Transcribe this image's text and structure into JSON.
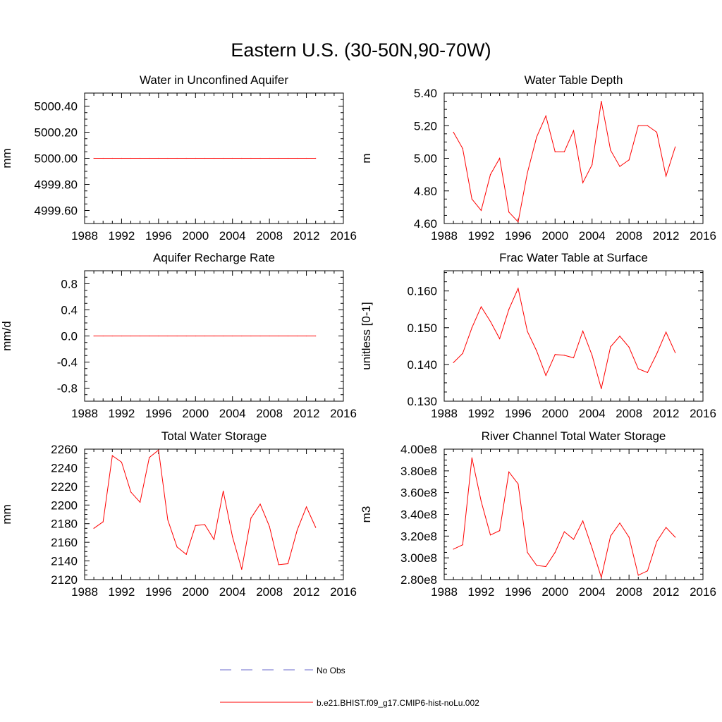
{
  "title": "Eastern U.S. (30-50N,90-70W)",
  "colors": {
    "model": "#ff0000",
    "obs": "#6a6acd",
    "axis": "#000000"
  },
  "legend": {
    "placement": "bottom-center",
    "entries": [
      {
        "label": "No Obs",
        "style": "dashed",
        "color": "#6a6acd"
      },
      {
        "label": "b.e21.BHIST.f09_g17.CMIP6-hist-noLu.002",
        "style": "solid",
        "color": "#ff0000"
      }
    ]
  },
  "chart_data": [
    {
      "type": "line",
      "title": "Water in Unconfined Aquifer",
      "ylabel": "mm",
      "xlim": [
        1988,
        2016
      ],
      "ylim": [
        4999.5,
        5000.5
      ],
      "xticks": [
        1988,
        1992,
        1996,
        2000,
        2004,
        2008,
        2012,
        2016
      ],
      "yticks": [
        4999.6,
        4999.8,
        5000.0,
        5000.2,
        5000.4
      ],
      "yticklabels": [
        "4999.60",
        "4999.80",
        "5000.00",
        "5000.20",
        "5000.40"
      ],
      "x": [
        1989,
        1990,
        1991,
        1992,
        1993,
        1994,
        1995,
        1996,
        1997,
        1998,
        1999,
        2000,
        2001,
        2002,
        2003,
        2004,
        2005,
        2006,
        2007,
        2008,
        2009,
        2010,
        2011,
        2012,
        2013
      ],
      "series": [
        {
          "values": [
            5000.0,
            5000.0,
            5000.0,
            5000.0,
            5000.0,
            5000.0,
            5000.0,
            5000.0,
            5000.0,
            5000.0,
            5000.0,
            5000.0,
            5000.0,
            5000.0,
            5000.0,
            5000.0,
            5000.0,
            5000.0,
            5000.0,
            5000.0,
            5000.0,
            5000.0,
            5000.0,
            5000.0,
            5000.0
          ]
        }
      ]
    },
    {
      "type": "line",
      "title": "Water Table Depth",
      "ylabel": "m",
      "xlim": [
        1988,
        2016
      ],
      "ylim": [
        4.6,
        5.4
      ],
      "xticks": [
        1988,
        1992,
        1996,
        2000,
        2004,
        2008,
        2012,
        2016
      ],
      "yticks": [
        4.6,
        4.8,
        5.0,
        5.2,
        5.4
      ],
      "yticklabels": [
        "4.60",
        "4.80",
        "5.00",
        "5.20",
        "5.40"
      ],
      "x": [
        1989,
        1990,
        1991,
        1992,
        1993,
        1994,
        1995,
        1996,
        1997,
        1998,
        1999,
        2000,
        2001,
        2002,
        2003,
        2004,
        2005,
        2006,
        2007,
        2008,
        2009,
        2010,
        2011,
        2012,
        2013
      ],
      "series": [
        {
          "values": [
            5.16,
            5.06,
            4.75,
            4.68,
            4.9,
            5.0,
            4.67,
            4.61,
            4.91,
            5.13,
            5.26,
            5.04,
            5.04,
            5.17,
            4.85,
            4.96,
            5.35,
            5.05,
            4.95,
            4.99,
            5.2,
            5.2,
            5.16,
            4.89,
            5.07
          ]
        }
      ]
    },
    {
      "type": "line",
      "title": "Aquifer Recharge Rate",
      "ylabel": "mm/d",
      "xlim": [
        1988,
        2016
      ],
      "ylim": [
        -1.0,
        1.0
      ],
      "xticks": [
        1988,
        1992,
        1996,
        2000,
        2004,
        2008,
        2012,
        2016
      ],
      "yticks": [
        -0.8,
        -0.4,
        0.0,
        0.4,
        0.8
      ],
      "yticklabels": [
        "-0.8",
        "-0.4",
        "0.0",
        "0.4",
        "0.8"
      ],
      "x": [
        1989,
        1990,
        1991,
        1992,
        1993,
        1994,
        1995,
        1996,
        1997,
        1998,
        1999,
        2000,
        2001,
        2002,
        2003,
        2004,
        2005,
        2006,
        2007,
        2008,
        2009,
        2010,
        2011,
        2012,
        2013
      ],
      "series": [
        {
          "values": [
            0.0,
            0.0,
            0.0,
            0.0,
            0.0,
            0.0,
            0.0,
            0.0,
            0.0,
            0.0,
            0.0,
            0.0,
            0.0,
            0.0,
            0.0,
            0.0,
            0.0,
            0.0,
            0.0,
            0.0,
            0.0,
            0.0,
            0.0,
            0.0,
            0.0
          ]
        }
      ]
    },
    {
      "type": "line",
      "title": "Frac Water Table at Surface",
      "ylabel": "unitless [0-1]",
      "xlim": [
        1988,
        2016
      ],
      "ylim": [
        0.13,
        0.1655
      ],
      "xticks": [
        1988,
        1992,
        1996,
        2000,
        2004,
        2008,
        2012,
        2016
      ],
      "yticks": [
        0.13,
        0.14,
        0.15,
        0.16
      ],
      "yticklabels": [
        "0.130",
        "0.140",
        "0.150",
        "0.160"
      ],
      "x": [
        1989,
        1990,
        1991,
        1992,
        1993,
        1994,
        1995,
        1996,
        1997,
        1998,
        1999,
        2000,
        2001,
        2002,
        2003,
        2004,
        2005,
        2006,
        2007,
        2008,
        2009,
        2010,
        2011,
        2012,
        2013
      ],
      "series": [
        {
          "values": [
            0.1405,
            0.143,
            0.15,
            0.1557,
            0.1517,
            0.147,
            0.155,
            0.1607,
            0.149,
            0.1437,
            0.137,
            0.1427,
            0.1425,
            0.1418,
            0.1491,
            0.1425,
            0.1334,
            0.1448,
            0.1477,
            0.1447,
            0.1388,
            0.1378,
            0.1429,
            0.1488,
            0.1432
          ]
        }
      ]
    },
    {
      "type": "line",
      "title": "Total Water Storage",
      "ylabel": "mm",
      "xlim": [
        1988,
        2016
      ],
      "ylim": [
        2120,
        2260
      ],
      "xticks": [
        1988,
        1992,
        1996,
        2000,
        2004,
        2008,
        2012,
        2016
      ],
      "yticks": [
        2120,
        2140,
        2160,
        2180,
        2200,
        2220,
        2240,
        2260
      ],
      "yticklabels": [
        "2120",
        "2140",
        "2160",
        "2180",
        "2200",
        "2220",
        "2240",
        "2260"
      ],
      "x": [
        1989,
        1990,
        1991,
        1992,
        1993,
        1994,
        1995,
        1996,
        1997,
        1998,
        1999,
        2000,
        2001,
        2002,
        2003,
        2004,
        2005,
        2006,
        2007,
        2008,
        2009,
        2010,
        2011,
        2012,
        2013
      ],
      "series": [
        {
          "values": [
            2175,
            2182,
            2253,
            2246,
            2214,
            2203,
            2251,
            2259,
            2184,
            2155,
            2147,
            2178,
            2179,
            2163,
            2215,
            2166,
            2131,
            2186,
            2201,
            2177,
            2136,
            2137,
            2173,
            2198,
            2176
          ]
        }
      ]
    },
    {
      "type": "line",
      "title": "River Channel Total Water Storage",
      "ylabel": "m3",
      "xlim": [
        1988,
        2016
      ],
      "ylim": [
        280000000,
        400000000
      ],
      "xticks": [
        1988,
        1992,
        1996,
        2000,
        2004,
        2008,
        2012,
        2016
      ],
      "yticks": [
        280000000,
        300000000,
        320000000,
        340000000,
        360000000,
        380000000,
        400000000
      ],
      "yticklabels": [
        "2.80e8",
        "3.00e8",
        "3.20e8",
        "3.40e8",
        "3.60e8",
        "3.80e8",
        "4.00e8"
      ],
      "x": [
        1989,
        1990,
        1991,
        1992,
        1993,
        1994,
        1995,
        1996,
        1997,
        1998,
        1999,
        2000,
        2001,
        2002,
        2003,
        2004,
        2005,
        2006,
        2007,
        2008,
        2009,
        2010,
        2011,
        2012,
        2013
      ],
      "series": [
        {
          "values": [
            308000000,
            312000000,
            392000000,
            352000000,
            321000000,
            325000000,
            379000000,
            368000000,
            305000000,
            293000000,
            292000000,
            305000000,
            324000000,
            317000000,
            334000000,
            309000000,
            282000000,
            320000000,
            332000000,
            319000000,
            284000000,
            288000000,
            315000000,
            328000000,
            319000000
          ]
        }
      ]
    }
  ]
}
